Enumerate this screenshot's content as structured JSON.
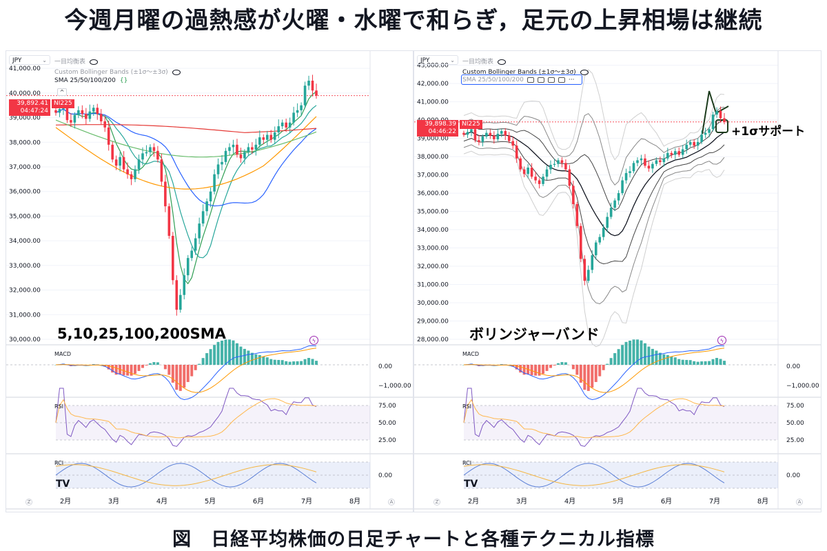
{
  "headline": "今週月曜の過熱感が火曜・水曜で和らぎ，足元の上昇相場は継続",
  "caption": "図　日経平均株価の日足チャートと各種テクニカル指標",
  "colors": {
    "up": "#26a69a",
    "down": "#f23645",
    "sma5": "#2e9e53",
    "sma10": "#26a69a",
    "sma25": "#2962ff",
    "sma100": "#ff9800",
    "sma200": "#e53935",
    "sma50": "#66bb6a",
    "band_mid": "#131722",
    "band1": "#444444",
    "band2": "#888888",
    "band3": "#cfcfcf",
    "rsi": "#7e57c2",
    "rsi_sig": "#ffb74d",
    "rci": "#5b7fd6",
    "rci_sig": "#f5b642"
  },
  "left": {
    "symbol": "JPY",
    "legend_ichimoku": "一目均衡表",
    "legend_bb": "Custom Bollinger Bands (±1σ〜±3σ)",
    "legend_sma": "SMA 25/50/100/200",
    "collapse_label": "^",
    "price_tag": "39,892.41",
    "time_tag": "04:47:24",
    "ni_tag": "NI225",
    "overlay_text": "5,10,25,100,200SMA",
    "bolt_icon": "lightning-icon",
    "macd_label": "MACD",
    "rsi_label": "RSI",
    "rci_label": "RCI",
    "tv_logo": "TV",
    "corner_left": "Z",
    "corner_right": "A"
  },
  "right": {
    "symbol": "JPY",
    "legend_ichimoku": "一目均衡表",
    "legend_bb": "Custom Bollinger Bands (±1σ〜±3σ)",
    "legend_sma": "SMA 25/50/100/200",
    "price_tag": "39,898.39",
    "time_tag": "04:46:22",
    "ni_tag": "NI225",
    "overlay_text": "ボリンジャーバンド",
    "annotation": "+1σサポート",
    "bolt_icon": "lightning-icon",
    "macd_label": "MACD",
    "rsi_label": "RSI",
    "rci_label": "RCI",
    "tv_logo": "TV",
    "corner_left": "Z",
    "corner_right": "A"
  },
  "chart_data": [
    {
      "type": "candlestick",
      "title": "5,10,25,100,200SMA",
      "symbol": "NI225",
      "y_ticks": [
        "41,000.00",
        "40,000.00",
        "39,000.00",
        "38,000.00",
        "37,000.00",
        "36,000.00",
        "35,000.00",
        "34,000.00",
        "33,000.00",
        "32,000.00",
        "31,000.00",
        "30,000.00"
      ],
      "ylim": [
        30000,
        41200
      ],
      "x_ticks": [
        "2月",
        "3月",
        "4月",
        "5月",
        "6月",
        "7月",
        "8月"
      ],
      "last_price": 39892.41,
      "closes": [
        39200,
        39350,
        39500,
        38900,
        38800,
        39100,
        39300,
        39150,
        38950,
        39250,
        39400,
        39150,
        38850,
        38600,
        37900,
        37300,
        37050,
        37400,
        36900,
        36700,
        36500,
        36900,
        37300,
        37550,
        37600,
        37800,
        37650,
        37300,
        36400,
        35400,
        34200,
        32400,
        31200,
        31800,
        32600,
        33300,
        33600,
        34100,
        34700,
        35200,
        35600,
        36000,
        36700,
        37100,
        37200,
        37650,
        37800,
        37900,
        37500,
        37350,
        37600,
        37800,
        37700,
        37900,
        38200,
        38100,
        38300,
        38100,
        38400,
        38650,
        38800,
        38600,
        38800,
        39200,
        39300,
        39500,
        40300,
        40500,
        40100,
        39890
      ],
      "sma_series": [
        "SMA5",
        "SMA10",
        "SMA25",
        "SMA100",
        "SMA200"
      ],
      "macd_ticks": [
        "0.00",
        "−1,000.00"
      ],
      "rsi_ticks": [
        "75.00",
        "50.00",
        "25.00"
      ],
      "rci_ticks": [
        "0.00"
      ]
    },
    {
      "type": "candlestick",
      "title": "ボリンジャーバンド",
      "symbol": "NI225",
      "y_ticks": [
        "43,000.00",
        "42,000.00",
        "41,000.00",
        "40,000.00",
        "39,000.00",
        "38,000.00",
        "37,000.00",
        "36,000.00",
        "35,000.00",
        "34,000.00",
        "33,000.00",
        "32,000.00",
        "31,000.00",
        "30,000.00",
        "29,000.00",
        "28,000.00"
      ],
      "ylim": [
        28000,
        43100
      ],
      "x_ticks": [
        "2月",
        "3月",
        "4月",
        "5月",
        "6月",
        "7月",
        "8月"
      ],
      "last_price": 39898.39,
      "annotation": "+1σサポート",
      "bands": [
        "+3σ",
        "+2σ",
        "+1σ",
        "mid",
        "−1σ",
        "−2σ",
        "−3σ"
      ],
      "macd_ticks": [
        "0.00",
        "−1,000.00"
      ],
      "rsi_ticks": [
        "75.00",
        "50.00",
        "25.00"
      ],
      "rci_ticks": [
        "0.00"
      ]
    }
  ]
}
